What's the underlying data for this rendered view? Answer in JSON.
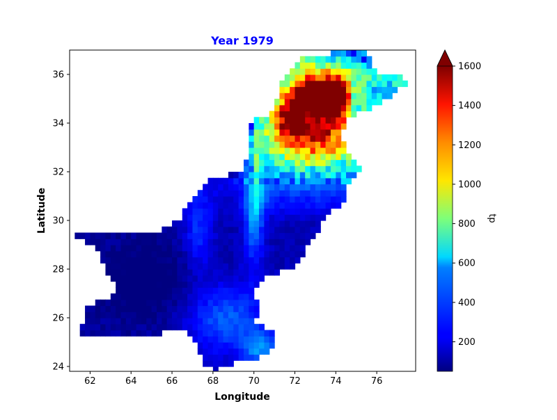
{
  "chart_data": {
    "type": "heatmap",
    "title": "Year 1979",
    "title_color": "#0000ff",
    "xlabel": "Longitude",
    "ylabel": "Latitude",
    "xlim": [
      61.0,
      77.9
    ],
    "ylim": [
      23.8,
      37.0
    ],
    "xticks": [
      62,
      64,
      66,
      68,
      70,
      72,
      74,
      76
    ],
    "yticks": [
      24,
      26,
      28,
      30,
      32,
      34,
      36
    ],
    "colorbar": {
      "label": "tp",
      "colormap": "jet",
      "range": [
        50,
        1600
      ],
      "ticks": [
        200,
        400,
        600,
        800,
        1000,
        1200,
        1400,
        1600
      ],
      "extend": "max"
    },
    "grid": false,
    "region": "Pakistan",
    "region_values": {
      "southwest_baluchistan": "50-200",
      "sindh_and_south": "150-350",
      "indus_corridor": "400-800",
      "punjab_northeast": "400-700",
      "northwest_upper": "800-1300",
      "northern_peaks": "1400-1600"
    }
  }
}
